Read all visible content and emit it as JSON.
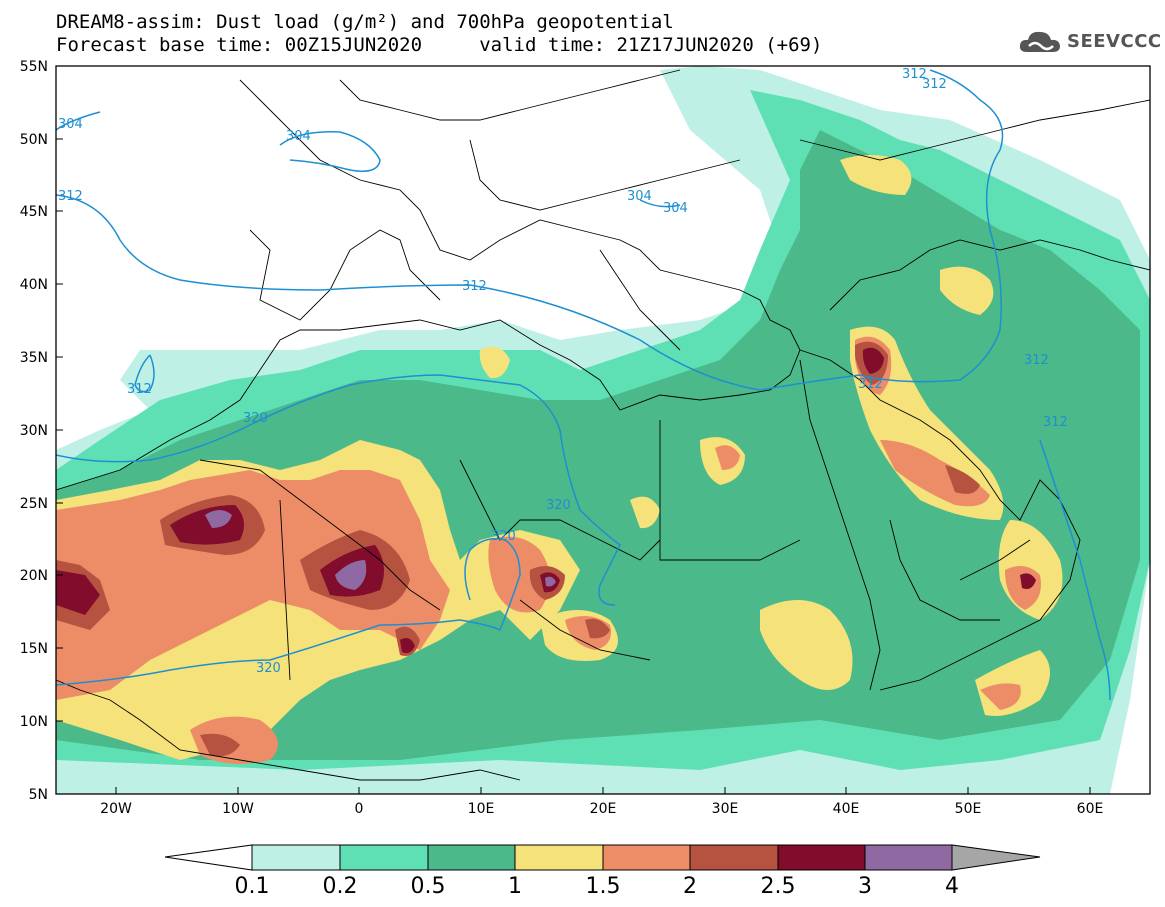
{
  "title_line1": "DREAM8-assim: Dust load (g/m²) and 700hPa geopotential",
  "title_line2": "Forecast base time: 00Z15JUN2020     valid time: 21Z17JUN2020 (+69)",
  "logo_text": "SEEVCCC",
  "lat_labels": [
    "55N",
    "50N",
    "45N",
    "40N",
    "35N",
    "30N",
    "25N",
    "20N",
    "15N",
    "10N",
    "5N"
  ],
  "lon_labels": [
    "20W",
    "10W",
    "0",
    "10E",
    "20E",
    "30E",
    "40E",
    "50E",
    "60E"
  ],
  "colorbar": {
    "ticks": [
      "0.1",
      "0.2",
      "0.5",
      "1",
      "1.5",
      "2",
      "2.5",
      "3",
      "4"
    ],
    "colors": [
      "#bff0e6",
      "#5fe0b4",
      "#4cb98a",
      "#f5e27a",
      "#ec8d68",
      "#b55240",
      "#820c2c",
      "#8f6aa2",
      "#a6a6a6"
    ]
  },
  "contour_labels": [
    "304",
    "304",
    "304",
    "304",
    "312",
    "312",
    "312",
    "312",
    "312",
    "312",
    "312",
    "312",
    "320",
    "320",
    "320",
    "320"
  ],
  "colors": {
    "geopotential": "#1e8fd2",
    "ocean": "#ffffff",
    "border": "#000000"
  }
}
